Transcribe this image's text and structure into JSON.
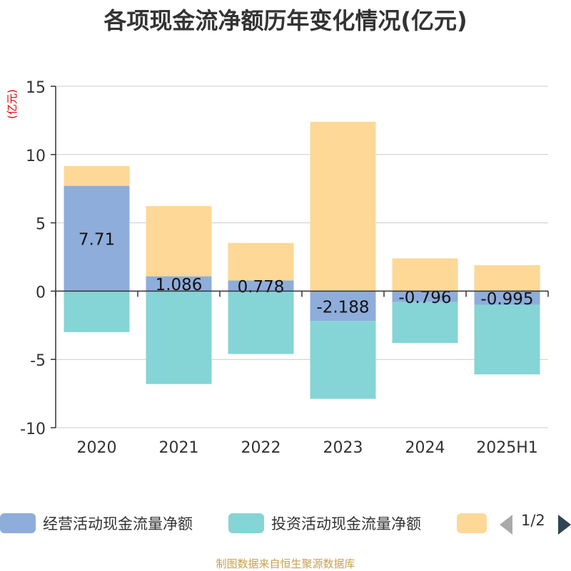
{
  "chart_data": {
    "type": "bar",
    "stacked": true,
    "title": "各项现金流净额历年变化情况(亿元)",
    "unit_label": "(亿元)",
    "categories": [
      "2020",
      "2021",
      "2022",
      "2023",
      "2024",
      "2025H1"
    ],
    "ylim": [
      -10,
      15
    ],
    "yticks": [
      15,
      10,
      5,
      0,
      -5,
      -10
    ],
    "grid": true,
    "legend_position": "bottom",
    "series": [
      {
        "name": "经营活动现金流量净额",
        "color": "#8eaddb",
        "values": [
          7.71,
          1.086,
          0.778,
          -2.188,
          -0.796,
          -0.995
        ],
        "show_labels": true,
        "labels": [
          "7.71",
          "1.086",
          "0.778",
          "-2.188",
          "-0.796",
          "-0.995"
        ]
      },
      {
        "name": "投资活动现金流量净额",
        "color": "#85d4d6",
        "values": [
          -3.0,
          -6.8,
          -4.6,
          -5.7,
          -3.0,
          -5.1
        ]
      },
      {
        "name": "",
        "color": "#fed897",
        "values": [
          1.45,
          5.15,
          2.75,
          12.4,
          2.4,
          1.9
        ]
      }
    ]
  },
  "colors": {
    "axis": "#333333",
    "grid": "#cccccc",
    "unit": "#e00000"
  },
  "pager": {
    "text": "1/2"
  },
  "footer": {
    "source": "制图数据来自恒生聚源数据库"
  }
}
